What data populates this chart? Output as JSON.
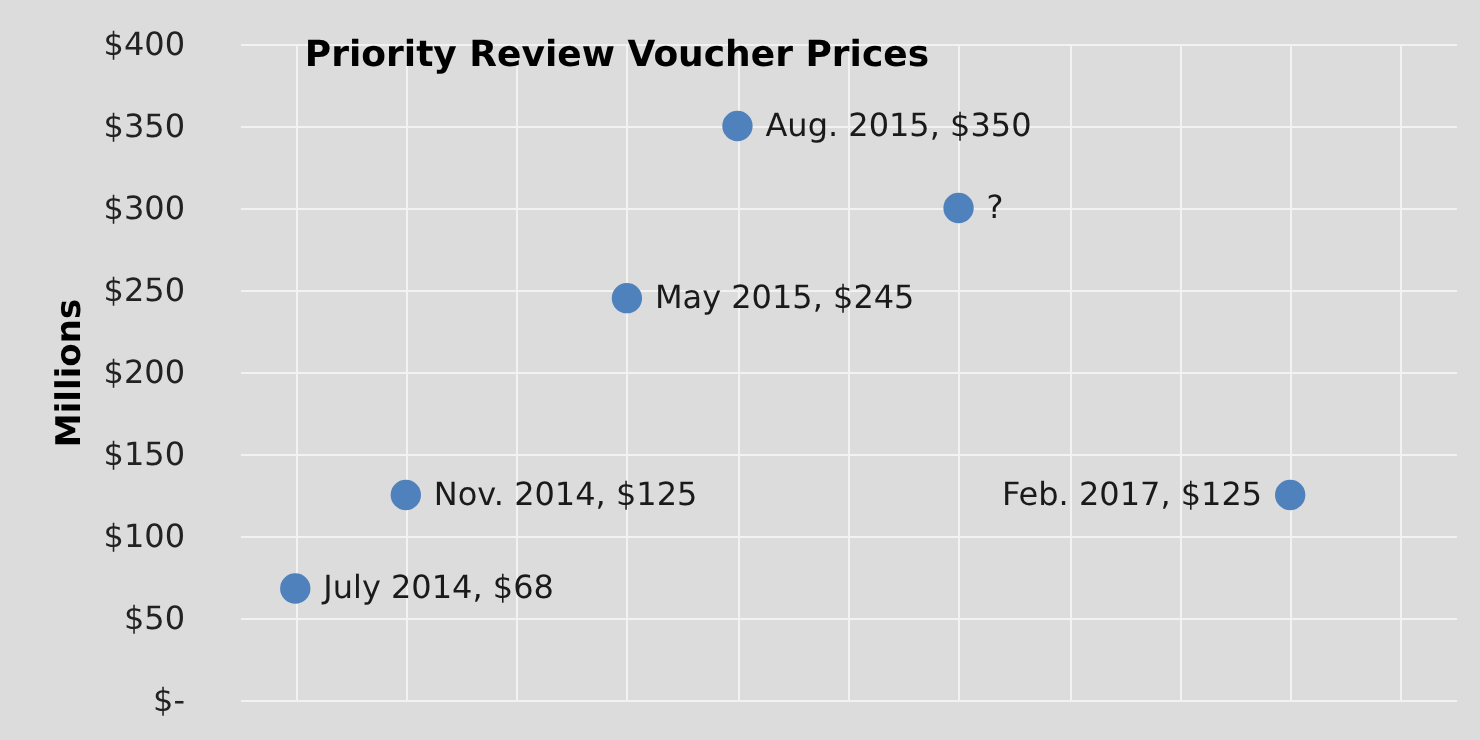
{
  "chart_data": {
    "type": "scatter",
    "title": "Priority Review Voucher Prices",
    "ylabel": "Millions",
    "categories": [
      null,
      null,
      null,
      null,
      null,
      null,
      null,
      null,
      null,
      null,
      null
    ],
    "series": [
      {
        "color": "#4f81bd",
        "values": [
          68,
          125,
          null,
          245,
          350,
          null,
          300,
          null,
          null,
          125,
          null
        ],
        "value_labels": [
          "July 2014, $68",
          "Nov. 2014, $125",
          null,
          "May 2015, $245",
          "Aug. 2015, $350",
          null,
          "?",
          null,
          null,
          "Feb. 2017, $125",
          null
        ]
      }
    ],
    "ylim": [
      0,
      400
    ],
    "yticks": [
      {
        "value": 0,
        "label": "$-"
      },
      {
        "value": 50,
        "label": "$50"
      },
      {
        "value": 100,
        "label": "$100"
      },
      {
        "value": 150,
        "label": "$150"
      },
      {
        "value": 200,
        "label": "$200"
      },
      {
        "value": 250,
        "label": "$250"
      },
      {
        "value": 300,
        "label": "$300"
      },
      {
        "value": 350,
        "label": "$350"
      },
      {
        "value": 400,
        "label": "$400"
      }
    ],
    "grid": true,
    "tick_labels": "y",
    "marker": "circle"
  }
}
